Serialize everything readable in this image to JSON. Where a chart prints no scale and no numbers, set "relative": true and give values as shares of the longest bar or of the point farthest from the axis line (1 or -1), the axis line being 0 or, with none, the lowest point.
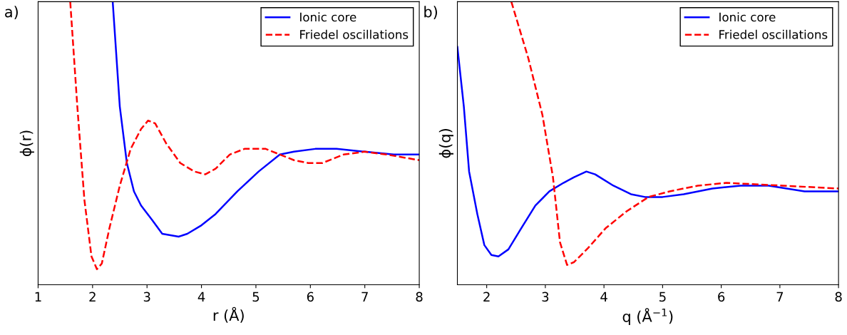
{
  "chart_data": [
    {
      "type": "line",
      "relative": true,
      "xlabel": "r (Å)",
      "ylabel": "ϕ(r)",
      "annotations": [
        "a)"
      ],
      "xlim": [
        1,
        8
      ],
      "xticks": [
        1,
        2,
        3,
        4,
        5,
        6,
        7,
        8
      ],
      "legend": "top right",
      "grid": false,
      "series": [
        {
          "name": "Ionic core",
          "color": "#0000ff",
          "line_style": "solid",
          "x": [
            2.37,
            2.5,
            2.63,
            2.76,
            2.89,
            3.09,
            3.28,
            3.58,
            3.74,
            4.0,
            4.26,
            4.66,
            5.05,
            5.44,
            5.7,
            6.09,
            6.48,
            7.0,
            7.53,
            8.0
          ],
          "values": [
            1.0,
            0.63,
            0.43,
            0.33,
            0.28,
            0.23,
            0.18,
            0.17,
            0.18,
            0.21,
            0.25,
            0.33,
            0.4,
            0.46,
            0.47,
            0.48,
            0.48,
            0.47,
            0.46,
            0.46
          ]
        },
        {
          "name": "Friedel oscillations",
          "color": "#ff0000",
          "line_style": "dashed",
          "x": [
            1.59,
            1.72,
            1.85,
            1.98,
            2.08,
            2.17,
            2.31,
            2.5,
            2.7,
            2.89,
            3.02,
            3.15,
            3.35,
            3.61,
            3.87,
            4.07,
            4.26,
            4.52,
            4.79,
            4.98,
            5.18,
            5.44,
            5.7,
            5.96,
            6.22,
            6.61,
            7.0,
            7.4,
            8.0
          ],
          "values": [
            1.0,
            0.63,
            0.3,
            0.1,
            0.055,
            0.075,
            0.2,
            0.35,
            0.48,
            0.55,
            0.58,
            0.57,
            0.5,
            0.43,
            0.4,
            0.39,
            0.41,
            0.46,
            0.48,
            0.48,
            0.48,
            0.46,
            0.44,
            0.43,
            0.43,
            0.46,
            0.47,
            0.46,
            0.44
          ]
        }
      ]
    },
    {
      "type": "line",
      "relative": true,
      "xlabel": "q (Å$^{−1}$)",
      "ylabel": "ϕ(q)",
      "annotations": [
        "b)"
      ],
      "xlim": [
        1.5,
        8
      ],
      "xticks": [
        2,
        3,
        4,
        5,
        6,
        7,
        8
      ],
      "legend": "top right",
      "grid": false,
      "series": [
        {
          "name": "Ionic core",
          "color": "#0000ff",
          "line_style": "solid",
          "x": [
            1.5,
            1.61,
            1.7,
            1.84,
            1.96,
            2.08,
            2.2,
            2.37,
            2.59,
            2.83,
            3.07,
            3.31,
            3.49,
            3.7,
            3.85,
            4.16,
            4.46,
            4.7,
            5.0,
            5.36,
            5.85,
            6.33,
            6.81,
            7.42,
            8.0
          ],
          "values": [
            0.84,
            0.63,
            0.4,
            0.25,
            0.14,
            0.105,
            0.1,
            0.125,
            0.2,
            0.28,
            0.33,
            0.36,
            0.38,
            0.4,
            0.39,
            0.35,
            0.32,
            0.31,
            0.31,
            0.32,
            0.34,
            0.35,
            0.35,
            0.33,
            0.33
          ]
        },
        {
          "name": "Friedel oscillations",
          "color": "#ff0000",
          "line_style": "dashed",
          "x": [
            2.42,
            2.71,
            2.95,
            3.13,
            3.25,
            3.37,
            3.49,
            3.73,
            4.03,
            4.39,
            4.76,
            5.12,
            5.6,
            6.09,
            6.57,
            7.05,
            8.0
          ],
          "values": [
            1.0,
            0.8,
            0.6,
            0.38,
            0.15,
            0.07,
            0.08,
            0.13,
            0.2,
            0.26,
            0.31,
            0.33,
            0.35,
            0.36,
            0.355,
            0.35,
            0.34
          ]
        }
      ]
    }
  ]
}
